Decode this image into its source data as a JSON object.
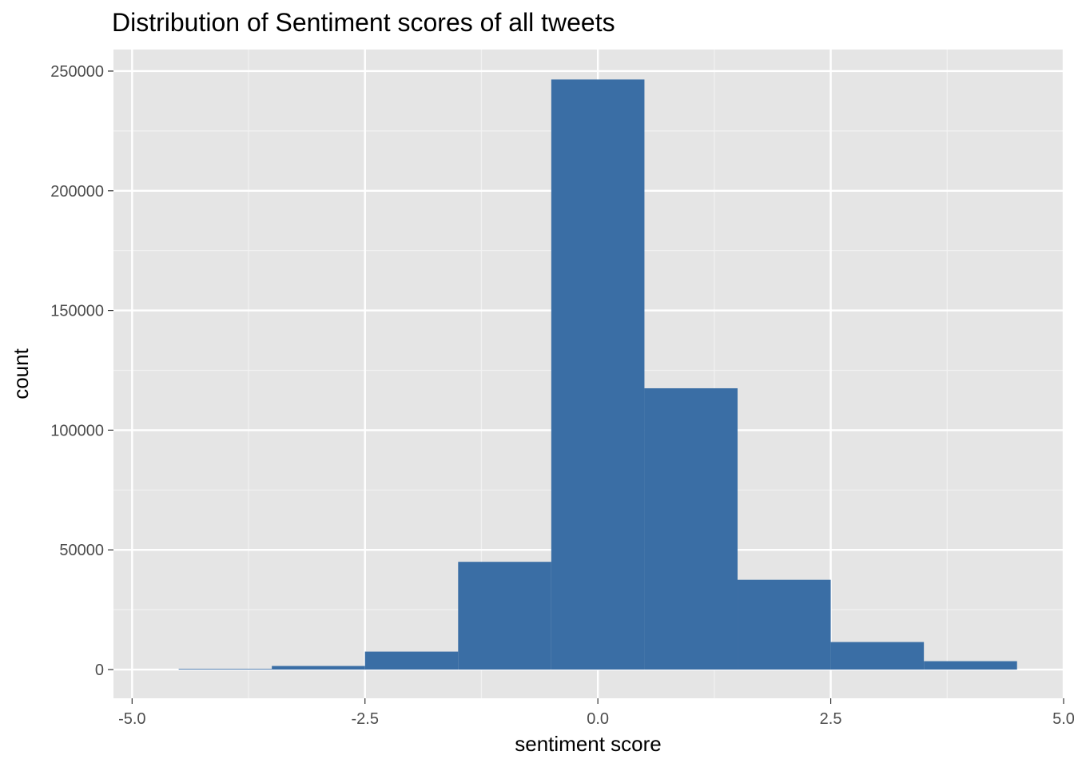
{
  "chart_data": {
    "type": "bar",
    "subtype": "histogram",
    "title": "Distribution of Sentiment scores of all tweets",
    "xlabel": "sentiment score",
    "ylabel": "count",
    "xlim": [
      -5.2,
      5.0
    ],
    "ylim": [
      -12000,
      259000
    ],
    "x_ticks": [
      -5.0,
      -2.5,
      0.0,
      2.5,
      5.0
    ],
    "x_tick_labels": [
      "-5.0",
      "-2.5",
      "0.0",
      "2.5",
      "5.0"
    ],
    "y_ticks": [
      0,
      50000,
      100000,
      150000,
      200000,
      250000
    ],
    "y_tick_labels": [
      "0",
      "50000",
      "100000",
      "150000",
      "200000",
      "250000"
    ],
    "bin_width": 1,
    "bins": [
      {
        "x0": -4.5,
        "x1": -3.5,
        "count": 300
      },
      {
        "x0": -3.5,
        "x1": -2.5,
        "count": 1500
      },
      {
        "x0": -2.5,
        "x1": -1.5,
        "count": 7500
      },
      {
        "x0": -1.5,
        "x1": -0.5,
        "count": 45000
      },
      {
        "x0": -0.5,
        "x1": 0.5,
        "count": 246500
      },
      {
        "x0": 0.5,
        "x1": 1.5,
        "count": 117500
      },
      {
        "x0": 1.5,
        "x1": 2.5,
        "count": 37500
      },
      {
        "x0": 2.5,
        "x1": 3.5,
        "count": 11500
      },
      {
        "x0": 3.5,
        "x1": 4.5,
        "count": 3500
      }
    ],
    "grid": true,
    "colors": {
      "bar": "#3a6ea5",
      "panel": "#e5e5e5",
      "grid_major": "#ffffff",
      "grid_minor": "#f2f2f2"
    }
  }
}
